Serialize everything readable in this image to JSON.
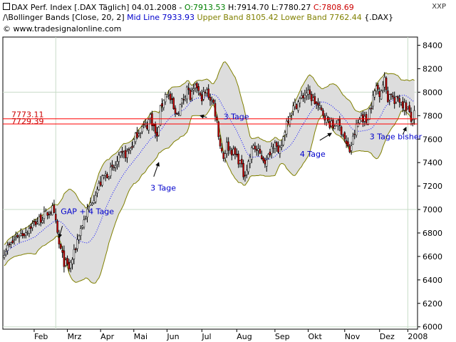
{
  "header": {
    "line1": {
      "instrument": "DAX Perf. Index [.DAX  Täglich]",
      "date": "04.01.2008",
      "open": "O:7913.53",
      "high": "H:7914.70",
      "low": "L:7780.27",
      "close": "C:7808.69"
    },
    "line2": {
      "indicator": "Bollinger Bands [Close, 20, 2]",
      "mid": "Mid Line 7933.93",
      "upper": "Upper Band 8105.42",
      "lower": "Lower Band 7762.44",
      "symbol": "{.DAX}"
    },
    "line3": {
      "copyright": "© www.tradesignalonline.com"
    },
    "exchange": "XXP"
  },
  "colors": {
    "up_candle": "#ffffff",
    "down_candle": "#cc0000",
    "wick": "#000000",
    "band_fill": "#dddddd",
    "band_line": "#808000",
    "mid_line": "#0000ff",
    "hline": "#ff0000",
    "grid": "#c8dcc8",
    "annotation": "#0000cc"
  },
  "chart_data": {
    "type": "candlestick",
    "y_range": [
      5980,
      8470
    ],
    "y_ticks": [
      "6000",
      "6200",
      "6400",
      "6600",
      "6800",
      "7000",
      "7200",
      "7400",
      "7600",
      "7800",
      "8000",
      "8200",
      "8400"
    ],
    "x_range": [
      0,
      248
    ],
    "x_ticks": [
      {
        "label": "Feb",
        "x": 18
      },
      {
        "label": "Mrz",
        "x": 38
      },
      {
        "label": "Apr",
        "x": 58
      },
      {
        "label": "Mai",
        "x": 78
      },
      {
        "label": "Jun",
        "x": 98
      },
      {
        "label": "Jul",
        "x": 119
      },
      {
        "label": "Aug",
        "x": 140
      },
      {
        "label": "Sep",
        "x": 163
      },
      {
        "label": "Okt",
        "x": 183
      },
      {
        "label": "Nov",
        "x": 205
      },
      {
        "label": "Dez",
        "x": 226
      },
      {
        "label": "2008",
        "x": 243
      }
    ],
    "close_anchors": [
      [
        0,
        6650
      ],
      [
        4,
        6700
      ],
      [
        8,
        6780
      ],
      [
        12,
        6800
      ],
      [
        16,
        6860
      ],
      [
        20,
        6900
      ],
      [
        25,
        6960
      ],
      [
        29,
        7000
      ],
      [
        31,
        6880
      ],
      [
        33,
        6700
      ],
      [
        36,
        6550
      ],
      [
        39,
        6500
      ],
      [
        42,
        6620
      ],
      [
        45,
        6800
      ],
      [
        50,
        6980
      ],
      [
        55,
        7150
      ],
      [
        60,
        7280
      ],
      [
        66,
        7350
      ],
      [
        70,
        7450
      ],
      [
        74,
        7480
      ],
      [
        77,
        7550
      ],
      [
        80,
        7650
      ],
      [
        83,
        7700
      ],
      [
        86,
        7720
      ],
      [
        88,
        7800
      ],
      [
        90,
        7700
      ],
      [
        92,
        7600
      ],
      [
        94,
        7850
      ],
      [
        96,
        7950
      ],
      [
        98,
        8000
      ],
      [
        101,
        7900
      ],
      [
        103,
        7800
      ],
      [
        105,
        7850
      ],
      [
        108,
        7950
      ],
      [
        110,
        8050
      ],
      [
        112,
        7950
      ],
      [
        116,
        8050
      ],
      [
        118,
        7950
      ],
      [
        122,
        8000
      ],
      [
        126,
        7900
      ],
      [
        128,
        7750
      ],
      [
        130,
        7550
      ],
      [
        132,
        7450
      ],
      [
        134,
        7550
      ],
      [
        137,
        7500
      ],
      [
        140,
        7450
      ],
      [
        142,
        7400
      ],
      [
        144,
        7300
      ],
      [
        146,
        7350
      ],
      [
        148,
        7450
      ],
      [
        150,
        7550
      ],
      [
        152,
        7500
      ],
      [
        155,
        7450
      ],
      [
        158,
        7400
      ],
      [
        160,
        7500
      ],
      [
        163,
        7600
      ],
      [
        165,
        7450
      ],
      [
        167,
        7550
      ],
      [
        170,
        7750
      ],
      [
        173,
        7850
      ],
      [
        176,
        7900
      ],
      [
        179,
        7950
      ],
      [
        182,
        8000
      ],
      [
        185,
        7950
      ],
      [
        188,
        7900
      ],
      [
        190,
        7850
      ],
      [
        193,
        7800
      ],
      [
        195,
        7750
      ],
      [
        198,
        7700
      ],
      [
        200,
        7750
      ],
      [
        202,
        7700
      ],
      [
        204,
        7650
      ],
      [
        206,
        7550
      ],
      [
        208,
        7500
      ],
      [
        210,
        7600
      ],
      [
        212,
        7700
      ],
      [
        215,
        7800
      ],
      [
        218,
        7750
      ],
      [
        220,
        7850
      ],
      [
        222,
        7950
      ],
      [
        224,
        8050
      ],
      [
        226,
        8000
      ],
      [
        229,
        8100
      ],
      [
        231,
        7950
      ],
      [
        233,
        8000
      ],
      [
        235,
        7900
      ],
      [
        237,
        7950
      ],
      [
        240,
        7900
      ],
      [
        243,
        7860
      ],
      [
        245,
        7750
      ],
      [
        247,
        7809
      ]
    ],
    "horizontal_lines": [
      {
        "value": 7773.11,
        "label": "7773.11"
      },
      {
        "value": 7729.39,
        "label": "7729.39"
      }
    ],
    "vertical_lines": [
      31,
      243
    ],
    "annotations": [
      {
        "text": "GAP + 4 Tage",
        "x": 34,
        "y": 6960
      },
      {
        "text": "3 Tage",
        "x": 88,
        "y": 7160
      },
      {
        "text": "3 Tage",
        "x": 132,
        "y": 7770
      },
      {
        "text": "4 Tage",
        "x": 178,
        "y": 7450
      },
      {
        "text": "3 Tage bisher",
        "x": 220,
        "y": 7600
      }
    ],
    "arrows": [
      {
        "from": [
          35,
          6860
        ],
        "to": [
          33,
          6760
        ]
      },
      {
        "from": [
          90,
          7280
        ],
        "to": [
          93,
          7400
        ]
      },
      {
        "from": [
          122,
          7785
        ],
        "to": [
          118,
          7800
        ]
      },
      {
        "from": [
          190,
          7590
        ],
        "to": [
          197,
          7650
        ]
      },
      {
        "from": [
          240,
          7640
        ],
        "to": [
          242,
          7700
        ]
      }
    ]
  }
}
